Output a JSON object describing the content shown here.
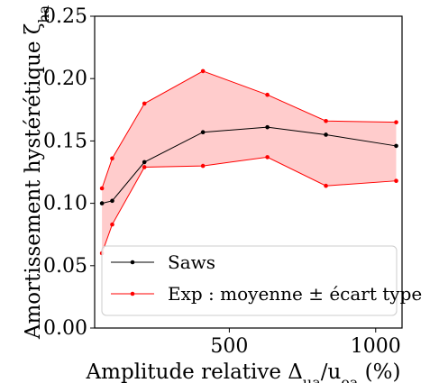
{
  "chart_data": {
    "type": "line",
    "xlabel": "Amplitude relative Δ_ua/u_ea (%)",
    "ylabel": "Amortissement hystérétique ζ_ha",
    "xlim": [
      40,
      1090
    ],
    "ylim": [
      0,
      0.25
    ],
    "x_ticks": [
      500,
      1000
    ],
    "y_ticks": [
      0.0,
      0.05,
      0.1,
      0.15,
      0.2,
      0.25
    ],
    "x_tick_labels": [
      "500",
      "1000"
    ],
    "y_tick_labels": [
      "0.00",
      "0.05",
      "0.10",
      "0.15",
      "0.20",
      "0.25"
    ],
    "grid": false,
    "legend_position": "lower-right",
    "series": [
      {
        "name": "Saws",
        "color": "#000000",
        "x": [
          65,
          100,
          210,
          410,
          630,
          830,
          1070
        ],
        "y": [
          0.1,
          0.102,
          0.133,
          0.157,
          0.161,
          0.155,
          0.146
        ]
      },
      {
        "name": "Exp : moyenne ± écart type",
        "color": "#ff0000",
        "fill_color": "#ffcccc",
        "x": [
          65,
          100,
          210,
          410,
          630,
          830,
          1070
        ],
        "upper": [
          0.112,
          0.136,
          0.18,
          0.206,
          0.187,
          0.166,
          0.165
        ],
        "lower": [
          0.06,
          0.083,
          0.129,
          0.13,
          0.137,
          0.114,
          0.118
        ]
      }
    ]
  }
}
